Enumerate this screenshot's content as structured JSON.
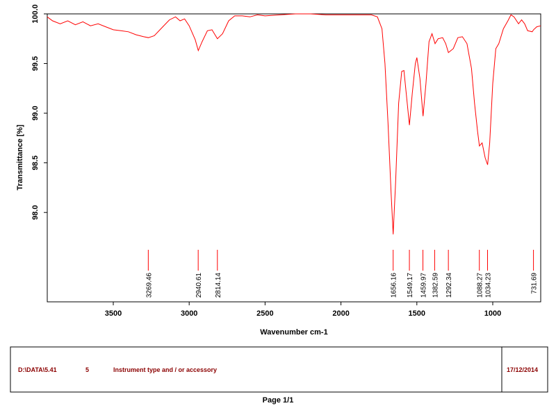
{
  "chart_data": {
    "type": "line",
    "color": "#ff0000",
    "xlabel": "Wavenumber cm-1",
    "ylabel": "Transmittance [%]",
    "x": [
      3935,
      3900,
      3850,
      3800,
      3750,
      3700,
      3650,
      3600,
      3550,
      3500,
      3450,
      3400,
      3350,
      3300,
      3269,
      3230,
      3180,
      3130,
      3090,
      3060,
      3030,
      3000,
      2960,
      2940,
      2915,
      2880,
      2850,
      2814,
      2780,
      2740,
      2700,
      2650,
      2600,
      2550,
      2500,
      2400,
      2300,
      2200,
      2100,
      2000,
      1900,
      1800,
      1760,
      1730,
      1710,
      1690,
      1670,
      1656,
      1640,
      1620,
      1600,
      1585,
      1570,
      1549,
      1530,
      1510,
      1500,
      1480,
      1459,
      1440,
      1420,
      1400,
      1380,
      1360,
      1330,
      1310,
      1292,
      1260,
      1230,
      1200,
      1170,
      1140,
      1120,
      1100,
      1088,
      1070,
      1050,
      1034,
      1020,
      1000,
      980,
      960,
      930,
      900,
      880,
      860,
      830,
      810,
      790,
      770,
      740,
      731,
      710,
      684
    ],
    "values": [
      99.97,
      99.93,
      99.9,
      99.93,
      99.89,
      99.92,
      99.88,
      99.9,
      99.87,
      99.84,
      99.83,
      99.82,
      99.79,
      99.77,
      99.76,
      99.78,
      99.86,
      99.94,
      99.97,
      99.93,
      99.95,
      99.88,
      99.74,
      99.63,
      99.72,
      99.83,
      99.84,
      99.75,
      99.8,
      99.93,
      99.98,
      99.98,
      99.97,
      99.99,
      99.98,
      99.99,
      100.0,
      100.0,
      99.99,
      99.99,
      99.99,
      99.99,
      99.97,
      99.85,
      99.5,
      98.9,
      98.2,
      97.78,
      98.3,
      99.1,
      99.42,
      99.43,
      99.2,
      98.88,
      99.2,
      99.5,
      99.56,
      99.35,
      98.97,
      99.3,
      99.72,
      99.8,
      99.7,
      99.75,
      99.76,
      99.7,
      99.61,
      99.65,
      99.76,
      99.77,
      99.7,
      99.45,
      99.1,
      98.82,
      98.67,
      98.7,
      98.55,
      98.48,
      98.7,
      99.3,
      99.65,
      99.7,
      99.85,
      99.93,
      99.99,
      99.97,
      99.9,
      99.94,
      99.9,
      99.83,
      99.82,
      99.84,
      99.87,
      99.88
    ],
    "xlim": [
      3935,
      684
    ],
    "xticks": [
      3500,
      3000,
      2500,
      2000,
      1500,
      1000
    ],
    "ylim": [
      97.1,
      100.0
    ],
    "yticks": [
      {
        "value": 100.0,
        "label": "100.0"
      },
      {
        "value": 99.5,
        "label": "99.5"
      },
      {
        "value": 99.0,
        "label": "99.0"
      },
      {
        "value": 98.5,
        "label": "98.5"
      },
      {
        "value": 98.0,
        "label": "98.0"
      }
    ],
    "peaks": [
      3269.46,
      2940.61,
      2814.14,
      1656.16,
      1549.17,
      1459.97,
      1382.59,
      1292.34,
      1088.27,
      1034.23,
      731.69
    ]
  },
  "footer": {
    "file": "D:\\DATA\\5.41",
    "number": "5",
    "instrument": "Instrument type and / or accessory",
    "date": "17/12/2014"
  },
  "page_label": "Page 1/1"
}
